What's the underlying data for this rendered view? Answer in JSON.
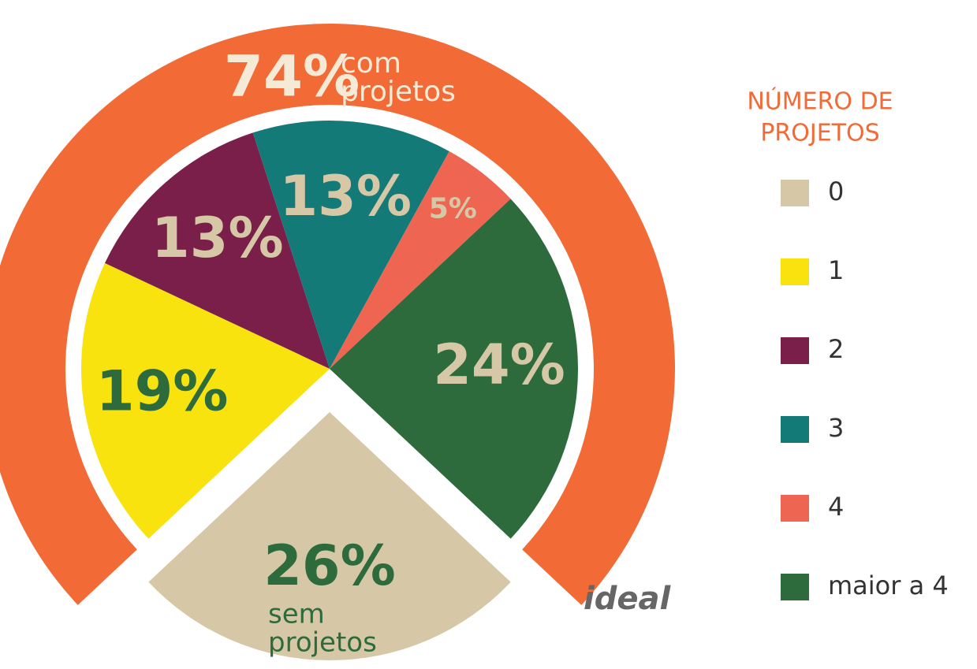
{
  "chart_data": {
    "type": "pie",
    "categories": [
      "0",
      "1",
      "2",
      "3",
      "4",
      "maior a 4"
    ],
    "values": [
      26,
      19,
      13,
      13,
      5,
      24
    ],
    "value_labels": [
      "26%",
      "19%",
      "13%",
      "13%",
      "5%",
      "24%"
    ],
    "colors": [
      "#d6c8a6",
      "#f9e30f",
      "#7a1f4a",
      "#137a78",
      "#ee6552",
      "#2d6a3c"
    ],
    "label_colors": [
      "#2d6a3c",
      "#2d6a3c",
      "#d6c8a6",
      "#d6c8a6",
      "#d6c8a6",
      "#d6c8a6"
    ],
    "slice_note": [
      "sem",
      "projetos"
    ],
    "ring": {
      "value": 74,
      "label": "74%",
      "text": [
        "com",
        "projetos"
      ],
      "color": "#f26a36"
    },
    "legend_title": [
      "NÚMERO DE",
      "PROJETOS"
    ],
    "logo": "ideal"
  }
}
